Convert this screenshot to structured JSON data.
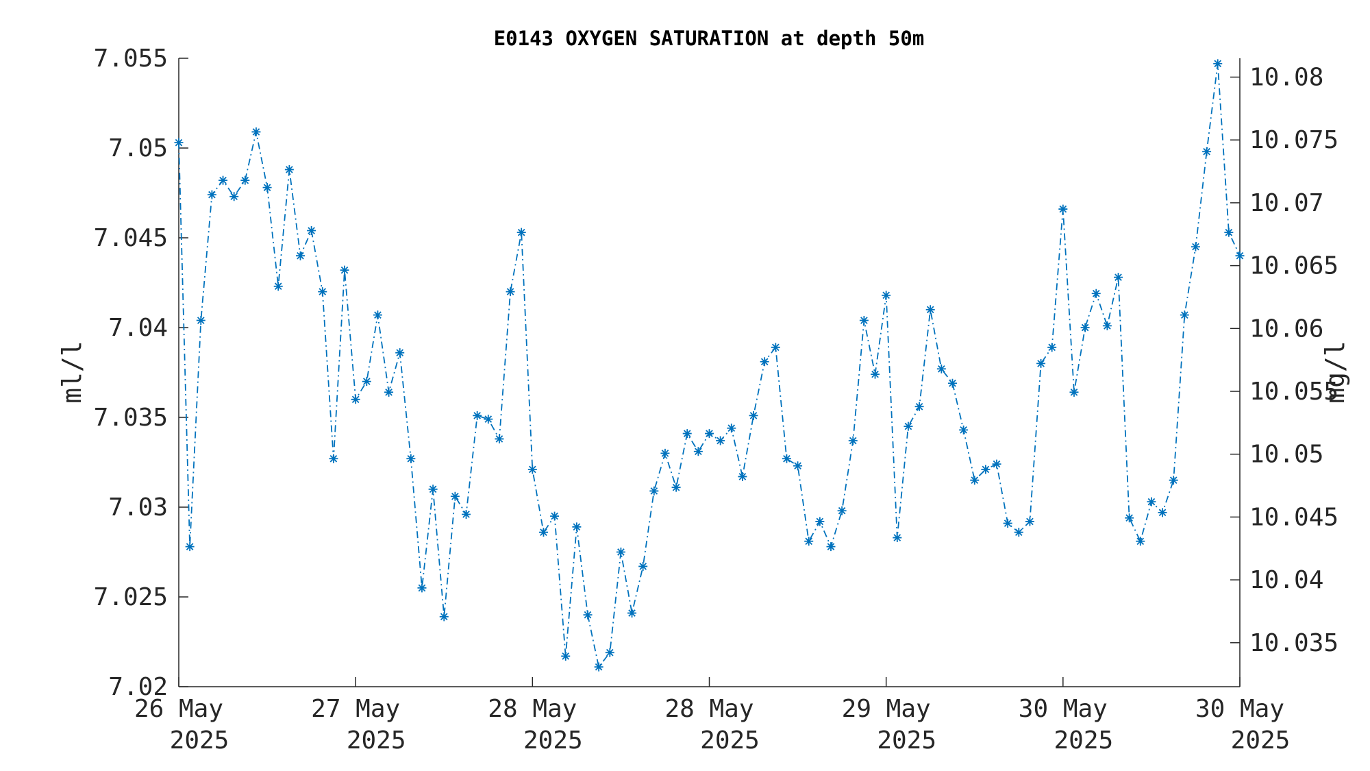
{
  "chart_data": {
    "type": "line",
    "title": "E0143 OXYGEN SATURATION at depth 50m",
    "ylabel": "ml/l",
    "ylabel_right": "mg/l",
    "ylim": [
      7.02,
      7.055
    ],
    "ylim_right": [
      10.0315,
      10.0815
    ],
    "yticks": [
      "7.02",
      "7.025",
      "7.03",
      "7.035",
      "7.04",
      "7.045",
      "7.05",
      "7.055"
    ],
    "yticks_right": [
      "10.035",
      "10.04",
      "10.045",
      "10.05",
      "10.055",
      "10.06",
      "10.065",
      "10.07",
      "10.075",
      "10.08"
    ],
    "xlim": [
      0,
      96
    ],
    "xticks": [
      {
        "at": 0,
        "line1": "26 May",
        "line2": "2025"
      },
      {
        "at": 16,
        "line1": "27 May",
        "line2": "2025"
      },
      {
        "at": 32,
        "line1": "28 May",
        "line2": "2025"
      },
      {
        "at": 48,
        "line1": "28 May",
        "line2": "2025"
      },
      {
        "at": 64,
        "line1": "29 May",
        "line2": "2025"
      },
      {
        "at": 80,
        "line1": "30 May",
        "line2": "2025"
      },
      {
        "at": 96,
        "line1": "30 May",
        "line2": "2025"
      }
    ],
    "grid": false,
    "color": "#0072BD",
    "marker": "asterisk",
    "line_style": "dash-dot",
    "x": [
      0,
      1,
      2,
      3,
      4,
      5,
      6,
      7,
      8,
      9,
      10,
      11,
      12,
      13,
      14,
      15,
      16,
      17,
      18,
      19,
      20,
      21,
      22,
      23,
      24,
      25,
      26,
      27,
      28,
      29,
      30,
      31,
      32,
      33,
      34,
      35,
      36,
      37,
      38,
      39,
      40,
      41,
      42,
      43,
      44,
      45,
      46,
      47,
      48,
      49,
      50,
      51,
      52,
      53,
      54,
      55,
      56,
      57,
      58,
      59,
      60,
      61,
      62,
      63,
      64,
      65,
      66,
      67,
      68,
      69,
      70,
      71,
      72,
      73,
      74,
      75,
      76,
      77,
      78,
      79,
      80,
      81,
      82,
      83,
      84,
      85,
      86,
      87,
      88,
      89,
      90,
      91,
      92,
      93,
      94,
      95,
      96
    ],
    "values": [
      7.0503,
      7.0278,
      7.0404,
      7.0474,
      7.0482,
      7.0473,
      7.0482,
      7.0509,
      7.0478,
      7.0423,
      7.0488,
      7.044,
      7.0454,
      7.042,
      7.0327,
      7.0432,
      7.036,
      7.037,
      7.0407,
      7.0364,
      7.0386,
      7.0327,
      7.0255,
      7.031,
      7.0239,
      7.0306,
      7.0296,
      7.0351,
      7.0349,
      7.0338,
      7.042,
      7.0453,
      7.0321,
      7.0286,
      7.0295,
      7.0217,
      7.0289,
      7.024,
      7.0211,
      7.0219,
      7.0275,
      7.0241,
      7.0267,
      7.0309,
      7.033,
      7.0311,
      7.0341,
      7.0331,
      7.0341,
      7.0337,
      7.0344,
      7.0317,
      7.0351,
      7.0381,
      7.0389,
      7.0327,
      7.0323,
      7.0281,
      7.0292,
      7.0278,
      7.0298,
      7.0337,
      7.0404,
      7.0374,
      7.0418,
      7.0283,
      7.0345,
      7.0356,
      7.041,
      7.0377,
      7.0369,
      7.0343,
      7.0315,
      7.0321,
      7.0324,
      7.0291,
      7.0286,
      7.0292,
      7.038,
      7.0389,
      7.0466,
      7.0364,
      7.04,
      7.0419,
      7.0401,
      7.0428,
      7.0294,
      7.0281,
      7.0303,
      7.0297,
      7.0315,
      7.0407,
      7.0445,
      7.0498,
      7.0547,
      7.0453,
      7.044
    ]
  }
}
